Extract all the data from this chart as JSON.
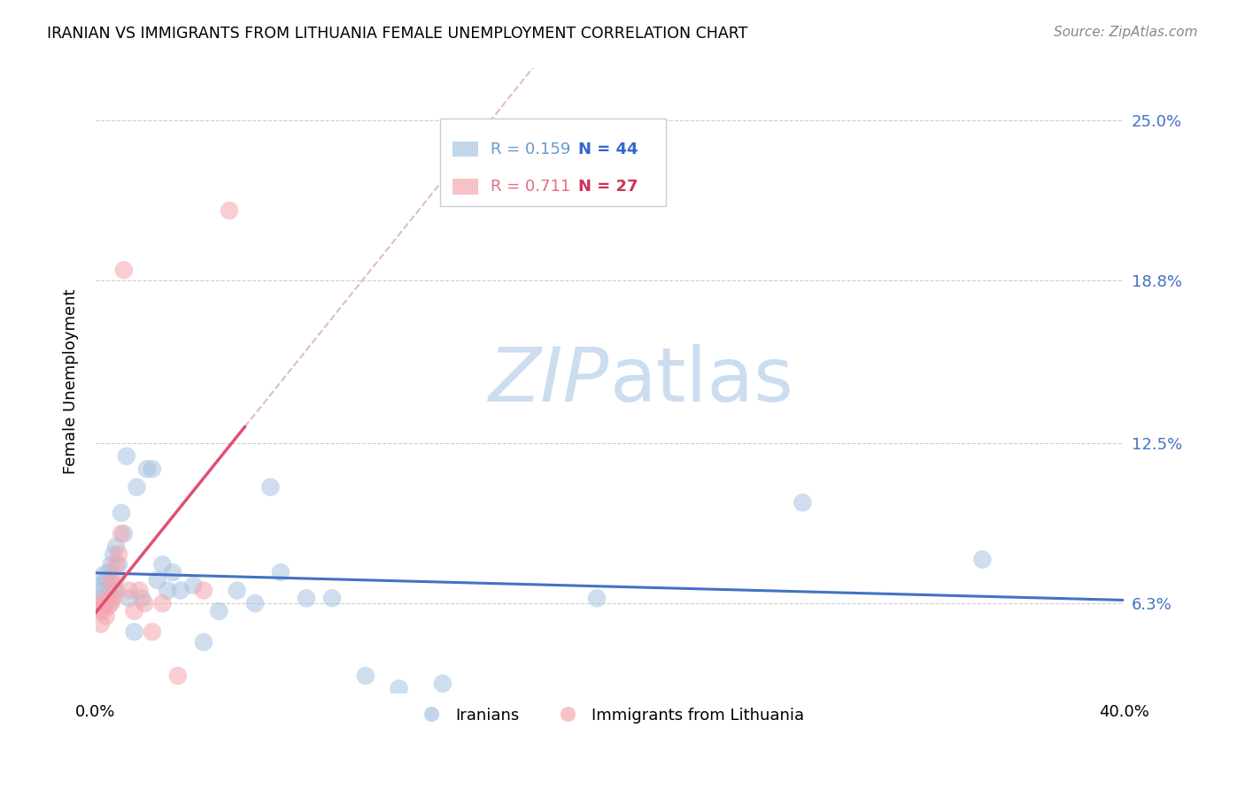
{
  "title": "IRANIAN VS IMMIGRANTS FROM LITHUANIA FEMALE UNEMPLOYMENT CORRELATION CHART",
  "source": "Source: ZipAtlas.com",
  "ylabel": "Female Unemployment",
  "yticks_pct": [
    6.3,
    12.5,
    18.8,
    25.0
  ],
  "xmin": 0.0,
  "xmax": 0.4,
  "ymin": 0.028,
  "ymax": 0.27,
  "watermark_zip": "ZIP",
  "watermark_atlas": "atlas",
  "legend_r1": "R = 0.159",
  "legend_n1": "N = 44",
  "legend_r2": "R = 0.711",
  "legend_n2": "N = 27",
  "blue_color": "#A8C4E0",
  "pink_color": "#F4A7B0",
  "trendline_blue": "#4472C4",
  "trendline_pink": "#E05070",
  "iranians_x": [
    0.002,
    0.002,
    0.003,
    0.003,
    0.004,
    0.004,
    0.005,
    0.005,
    0.006,
    0.006,
    0.007,
    0.007,
    0.008,
    0.008,
    0.009,
    0.01,
    0.011,
    0.012,
    0.013,
    0.015,
    0.016,
    0.018,
    0.02,
    0.022,
    0.024,
    0.026,
    0.028,
    0.03,
    0.033,
    0.038,
    0.042,
    0.048,
    0.055,
    0.062,
    0.068,
    0.072,
    0.082,
    0.092,
    0.105,
    0.118,
    0.135,
    0.195,
    0.275,
    0.345
  ],
  "iranians_y": [
    0.07,
    0.068,
    0.074,
    0.065,
    0.072,
    0.063,
    0.075,
    0.068,
    0.078,
    0.065,
    0.082,
    0.07,
    0.085,
    0.068,
    0.078,
    0.098,
    0.09,
    0.12,
    0.065,
    0.052,
    0.108,
    0.065,
    0.115,
    0.115,
    0.072,
    0.078,
    0.068,
    0.075,
    0.068,
    0.07,
    0.048,
    0.06,
    0.068,
    0.063,
    0.108,
    0.075,
    0.065,
    0.065,
    0.035,
    0.03,
    0.032,
    0.065,
    0.102,
    0.08
  ],
  "lithuania_x": [
    0.001,
    0.002,
    0.002,
    0.003,
    0.003,
    0.004,
    0.004,
    0.005,
    0.005,
    0.006,
    0.006,
    0.007,
    0.007,
    0.008,
    0.008,
    0.009,
    0.01,
    0.011,
    0.013,
    0.015,
    0.017,
    0.019,
    0.022,
    0.026,
    0.032,
    0.042,
    0.052
  ],
  "lithuania_y": [
    0.063,
    0.06,
    0.055,
    0.063,
    0.06,
    0.063,
    0.058,
    0.062,
    0.065,
    0.063,
    0.072,
    0.068,
    0.065,
    0.078,
    0.073,
    0.082,
    0.09,
    0.192,
    0.068,
    0.06,
    0.068,
    0.063,
    0.052,
    0.063,
    0.035,
    0.068,
    0.215
  ]
}
